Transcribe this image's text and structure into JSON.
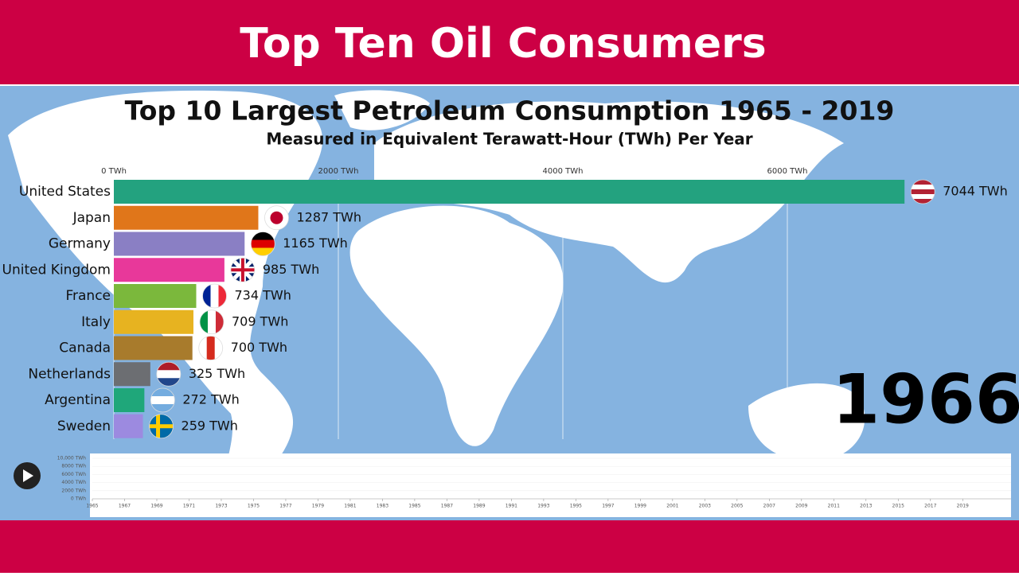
{
  "banner": "Top Ten Oil Consumers",
  "chart_data": {
    "type": "bar",
    "orientation": "horizontal",
    "title": "Top 10 Largest Petroleum Consumption 1965 - 2019",
    "subtitle": "Measured in Equivalent Terawatt-Hour (TWh) Per Year",
    "annotation": "1966",
    "categories": [
      "United States",
      "Japan",
      "Germany",
      "United Kingdom",
      "France",
      "Italy",
      "Canada",
      "Netherlands",
      "Argentina",
      "Sweden"
    ],
    "values": [
      7044,
      1287,
      1165,
      985,
      734,
      709,
      700,
      325,
      272,
      259
    ],
    "value_labels": [
      "7044 TWh",
      "1287 TWh",
      "1165 TWh",
      "985 TWh",
      "734 TWh",
      "709 TWh",
      "700 TWh",
      "325 TWh",
      "272 TWh",
      "259 TWh"
    ],
    "colors": [
      "#23a27f",
      "#e0761a",
      "#8a7fc4",
      "#e8389a",
      "#7bb83c",
      "#e7b320",
      "#a87b2c",
      "#6c6e72",
      "#1fa77a",
      "#9c8ae0"
    ],
    "xlim": [
      0,
      8000
    ],
    "xticks": [
      {
        "value": 0,
        "label": "0 TWh"
      },
      {
        "value": 2000,
        "label": "2000 TWh"
      },
      {
        "value": 4000,
        "label": "4000 TWh"
      },
      {
        "value": 6000,
        "label": "6000 TWh"
      }
    ],
    "grid": true
  },
  "timeline": {
    "xlim": [
      1965,
      2022
    ],
    "ylim": [
      0,
      10000
    ],
    "yticks": [
      {
        "value": 0,
        "label": "0 TWh"
      },
      {
        "value": 2000,
        "label": "2000 TWh"
      },
      {
        "value": 4000,
        "label": "4000 TWh"
      },
      {
        "value": 6000,
        "label": "6000 TWh"
      },
      {
        "value": 8000,
        "label": "8000 TWh"
      },
      {
        "value": 10000,
        "label": "10,000 TWh"
      }
    ],
    "xticks": [
      1965,
      1967,
      1969,
      1971,
      1973,
      1975,
      1977,
      1979,
      1981,
      1983,
      1985,
      1987,
      1989,
      1991,
      1993,
      1995,
      1997,
      1999,
      2001,
      2003,
      2005,
      2007,
      2009,
      2011,
      2013,
      2015,
      2017,
      2019
    ]
  }
}
